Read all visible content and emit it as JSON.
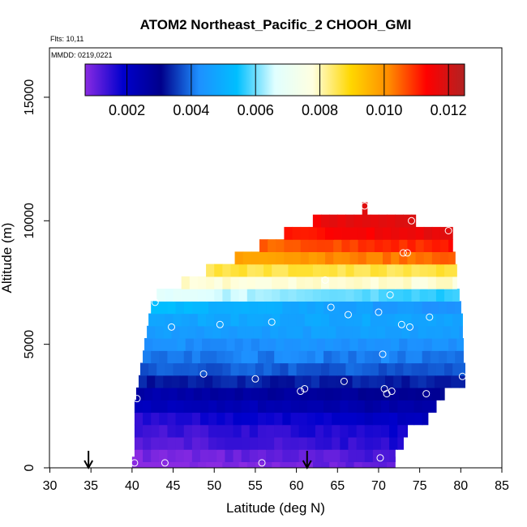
{
  "chart_data": {
    "type": "heatmap",
    "title": "ATOM2 Northeast_Pacific_2 CHOOH_GMI",
    "flights_label": "Flts: 10,11",
    "dates_label": "MMDD: 0219,0221",
    "xlabel": "Latitude (deg N)",
    "ylabel": "Altitude (m)",
    "xlim": [
      30,
      85
    ],
    "ylim": [
      0,
      17000
    ],
    "x_ticks": [
      "30",
      "35",
      "40",
      "45",
      "50",
      "55",
      "60",
      "65",
      "70",
      "75",
      "80",
      "85"
    ],
    "y_ticks": [
      "0",
      "5000",
      "10000",
      "15000"
    ],
    "colorbar": {
      "ticks": [
        "0.002",
        "0.004",
        "0.006",
        "0.008",
        "0.010",
        "0.012"
      ],
      "tick_values": [
        0.002,
        0.004,
        0.006,
        0.008,
        0.01,
        0.012
      ],
      "range": [
        0.0007,
        0.0125
      ],
      "colors": [
        "#8a2be2",
        "#0000cd",
        "#00008b",
        "#1e90ff",
        "#00bfff",
        "#e0ffff",
        "#ffffe0",
        "#ffd700",
        "#ff8c00",
        "#ff0000",
        "#b22222"
      ]
    },
    "profile_bands": [
      {
        "alt": 200,
        "lat_min": 40,
        "lat_max": 72,
        "value": 0.0009
      },
      {
        "alt": 500,
        "lat_min": 40.3,
        "lat_max": 72,
        "value": 0.0011
      },
      {
        "alt": 1000,
        "lat_min": 40.3,
        "lat_max": 73,
        "value": 0.0014
      },
      {
        "alt": 1500,
        "lat_min": 40.3,
        "lat_max": 73.5,
        "value": 0.0016
      },
      {
        "alt": 2000,
        "lat_min": 40.3,
        "lat_max": 76,
        "value": 0.0019
      },
      {
        "alt": 2500,
        "lat_min": 40.3,
        "lat_max": 77,
        "value": 0.0024
      },
      {
        "alt": 3000,
        "lat_min": 40.5,
        "lat_max": 78,
        "value": 0.0028
      },
      {
        "alt": 3500,
        "lat_min": 40.8,
        "lat_max": 80.5,
        "value": 0.0033
      },
      {
        "alt": 4000,
        "lat_min": 41,
        "lat_max": 80.5,
        "value": 0.0038
      },
      {
        "alt": 4500,
        "lat_min": 41.3,
        "lat_max": 80.3,
        "value": 0.0041
      },
      {
        "alt": 5000,
        "lat_min": 41.5,
        "lat_max": 80.3,
        "value": 0.0043
      },
      {
        "alt": 5500,
        "lat_min": 41.8,
        "lat_max": 80.2,
        "value": 0.0046
      },
      {
        "alt": 6000,
        "lat_min": 42,
        "lat_max": 80.2,
        "value": 0.0048
      },
      {
        "alt": 6500,
        "lat_min": 42.3,
        "lat_max": 80,
        "value": 0.0054
      },
      {
        "alt": 7000,
        "lat_min": 43,
        "lat_max": 79.8,
        "value": 0.0068
      },
      {
        "alt": 7500,
        "lat_min": 46,
        "lat_max": 79.5,
        "value": 0.0078
      },
      {
        "alt": 8000,
        "lat_min": 49,
        "lat_max": 79.5,
        "value": 0.0086
      },
      {
        "alt": 8500,
        "lat_min": 52.5,
        "lat_max": 79.3,
        "value": 0.0094
      },
      {
        "alt": 9000,
        "lat_min": 55.5,
        "lat_max": 79,
        "value": 0.01
      },
      {
        "alt": 9500,
        "lat_min": 58.5,
        "lat_max": 79,
        "value": 0.0106
      },
      {
        "alt": 10000,
        "lat_min": 62,
        "lat_max": 74.5,
        "value": 0.0109
      },
      {
        "alt": 10500,
        "lat_min": 68,
        "lat_max": 68.6,
        "value": 0.0108
      }
    ],
    "obs_points": {
      "lat": [
        40.3,
        44,
        55.8,
        70.2,
        40.6,
        42.8,
        44.8,
        48.7,
        50.7,
        55,
        57,
        60.5,
        61,
        63.5,
        64.2,
        65.8,
        66.3,
        70,
        70.5,
        70.7,
        71,
        71.4,
        71.6,
        72.8,
        73,
        73.5,
        73.8,
        74,
        75.8,
        76.2,
        78.5,
        80.2,
        68.3
      ],
      "alt": [
        200,
        200,
        200,
        400,
        2800,
        6700,
        5700,
        3800,
        5800,
        3600,
        5900,
        3100,
        3200,
        7600,
        6500,
        3500,
        6200,
        6300,
        4600,
        3200,
        3000,
        7000,
        3100,
        5800,
        8700,
        8700,
        5700,
        10000,
        3000,
        6100,
        9600,
        3700,
        10600
      ]
    },
    "flight_markers_lat": [
      34.7,
      61.3
    ]
  }
}
